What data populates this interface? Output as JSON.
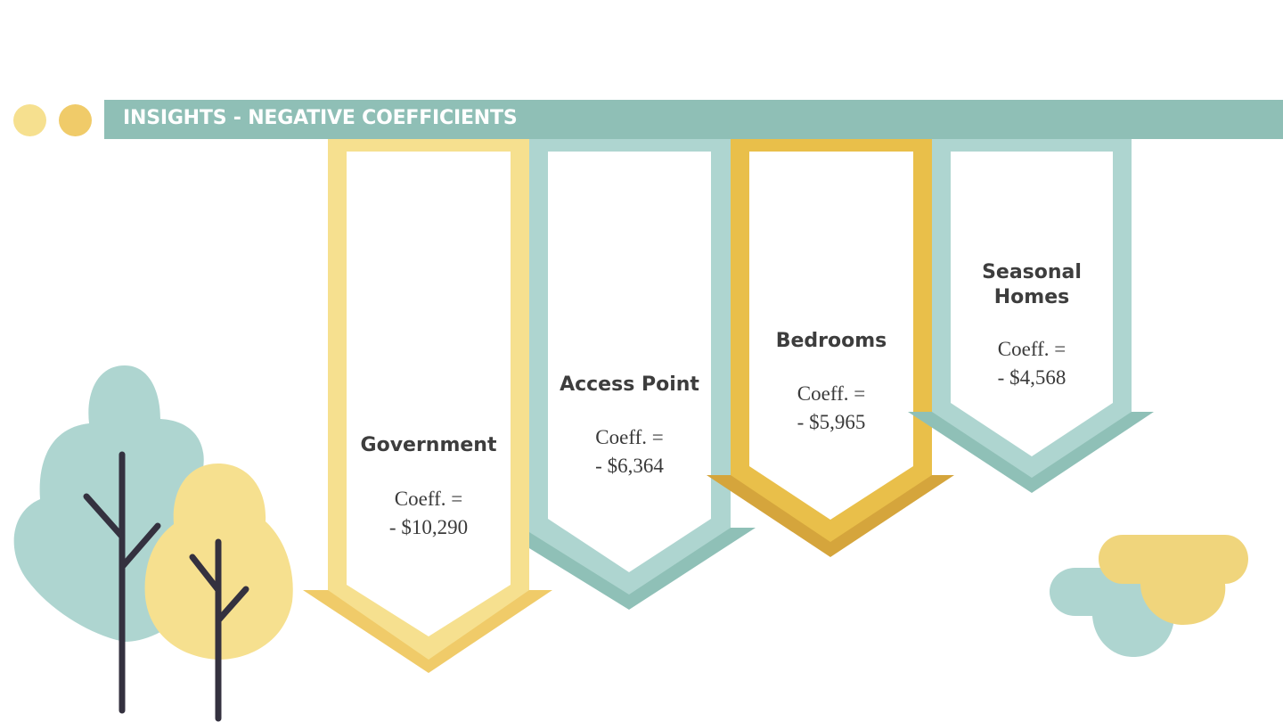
{
  "slide": {
    "title": "INSIGHTS - NEGATIVE COEFFICIENTS",
    "colors": {
      "title_bar": "#8fbfb6",
      "pale_yellow": "#f6e08f",
      "gold": "#e9bf4a",
      "teal": "#aed5d0",
      "teal_dark": "#8fc0b7",
      "yellow_dark": "#f0cb69",
      "gold_dark": "#d5a53c",
      "trunk": "#34313f"
    }
  },
  "cards": [
    {
      "label": "Government",
      "coeff_label": "Coeff. =",
      "coeff_value": "- $10,290",
      "color": "#f6e08f"
    },
    {
      "label": "Access Point",
      "coeff_label": "Coeff. =",
      "coeff_value": "- $6,364",
      "color": "#aed5d0"
    },
    {
      "label": "Bedrooms",
      "coeff_label": "Coeff. =",
      "coeff_value": "- $5,965",
      "color": "#e9bf4a"
    },
    {
      "label": "Seasonal\nHomes",
      "coeff_label": "Coeff. =",
      "coeff_value": "- $4,568",
      "color": "#aed5d0"
    }
  ]
}
